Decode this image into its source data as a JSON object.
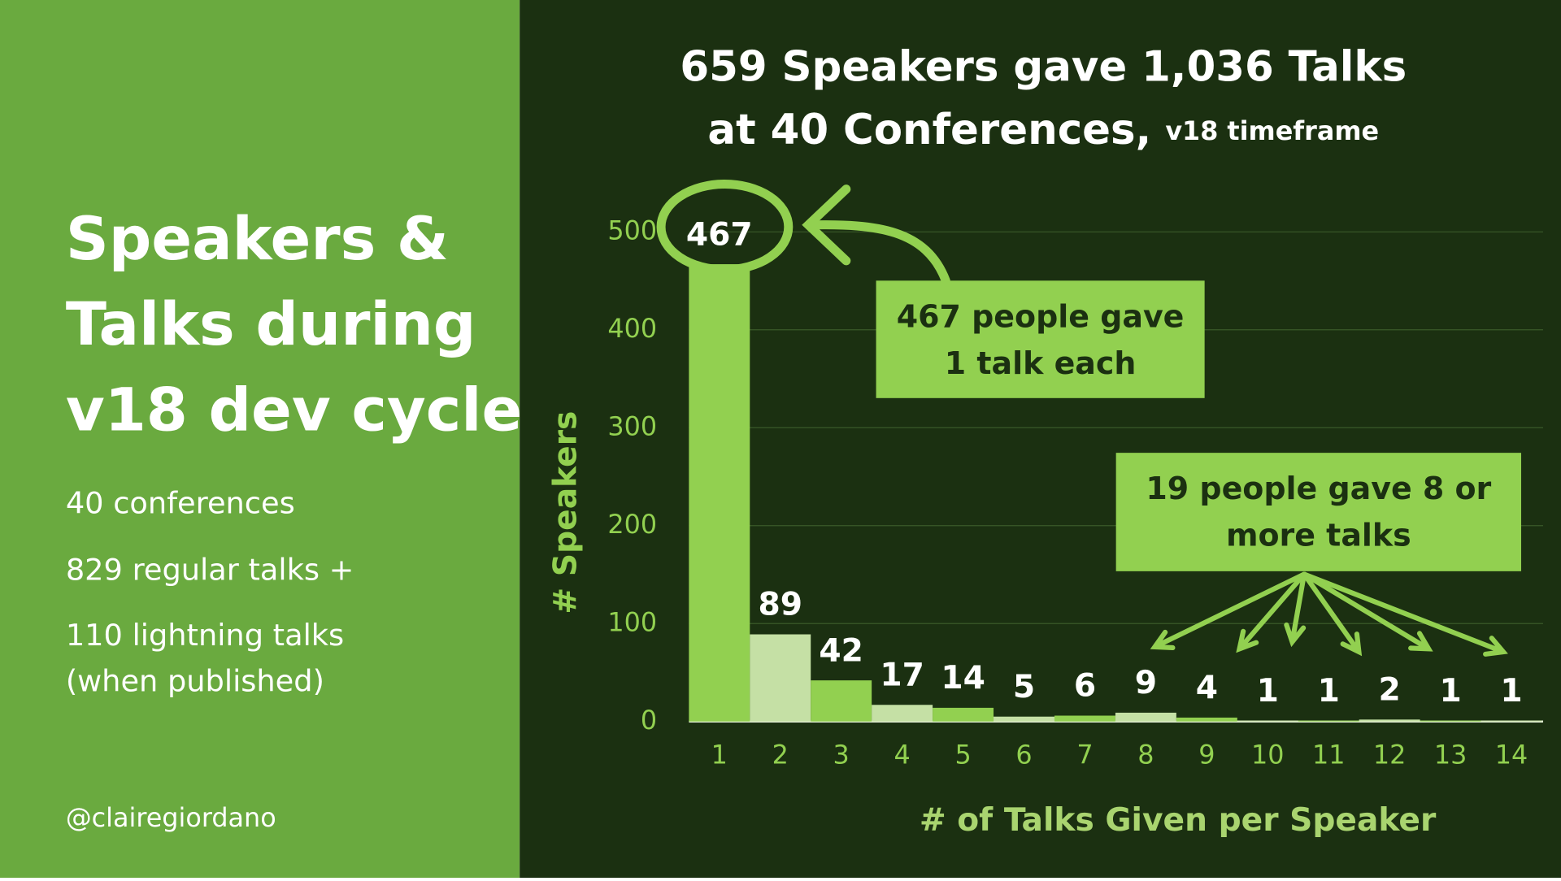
{
  "sidebar": {
    "title_lines": [
      "Speakers &",
      "Talks during",
      "v18 dev cycle"
    ],
    "facts": [
      "40 conferences",
      "829 regular talks +",
      "110 lightning talks",
      "(when published)"
    ],
    "handle": "@clairegiordano"
  },
  "chart_data": {
    "type": "bar",
    "title": [
      "659 Speakers gave 1,036 Talks",
      "at 40 Conferences,"
    ],
    "subtitle": "v18 timeframe",
    "x_label": "# of Talks Given per Speaker",
    "y_label": "# Speakers",
    "categories": [
      "1",
      "2",
      "3",
      "4",
      "5",
      "6",
      "7",
      "8",
      "9",
      "10",
      "11",
      "12",
      "13",
      "14"
    ],
    "values": [
      467,
      89,
      42,
      17,
      14,
      5,
      6,
      9,
      4,
      1,
      1,
      2,
      1,
      1
    ],
    "colors": [
      "#92d050",
      "#c5e0a5",
      "#92d050",
      "#c5e0a5",
      "#92d050",
      "#c5e0a5",
      "#92d050",
      "#c5e0a5",
      "#92d050",
      "#c5e0a5",
      "#92d050",
      "#c5e0a5",
      "#92d050",
      "#c5e0a5"
    ],
    "ylim": [
      0,
      500
    ],
    "yticks": [
      0,
      100,
      200,
      300,
      400,
      500
    ],
    "grid": true,
    "annotations": [
      {
        "lines": [
          "467 people gave",
          "1 talk each"
        ]
      },
      {
        "lines": [
          "19 people gave 8 or",
          "more talks"
        ]
      }
    ]
  }
}
